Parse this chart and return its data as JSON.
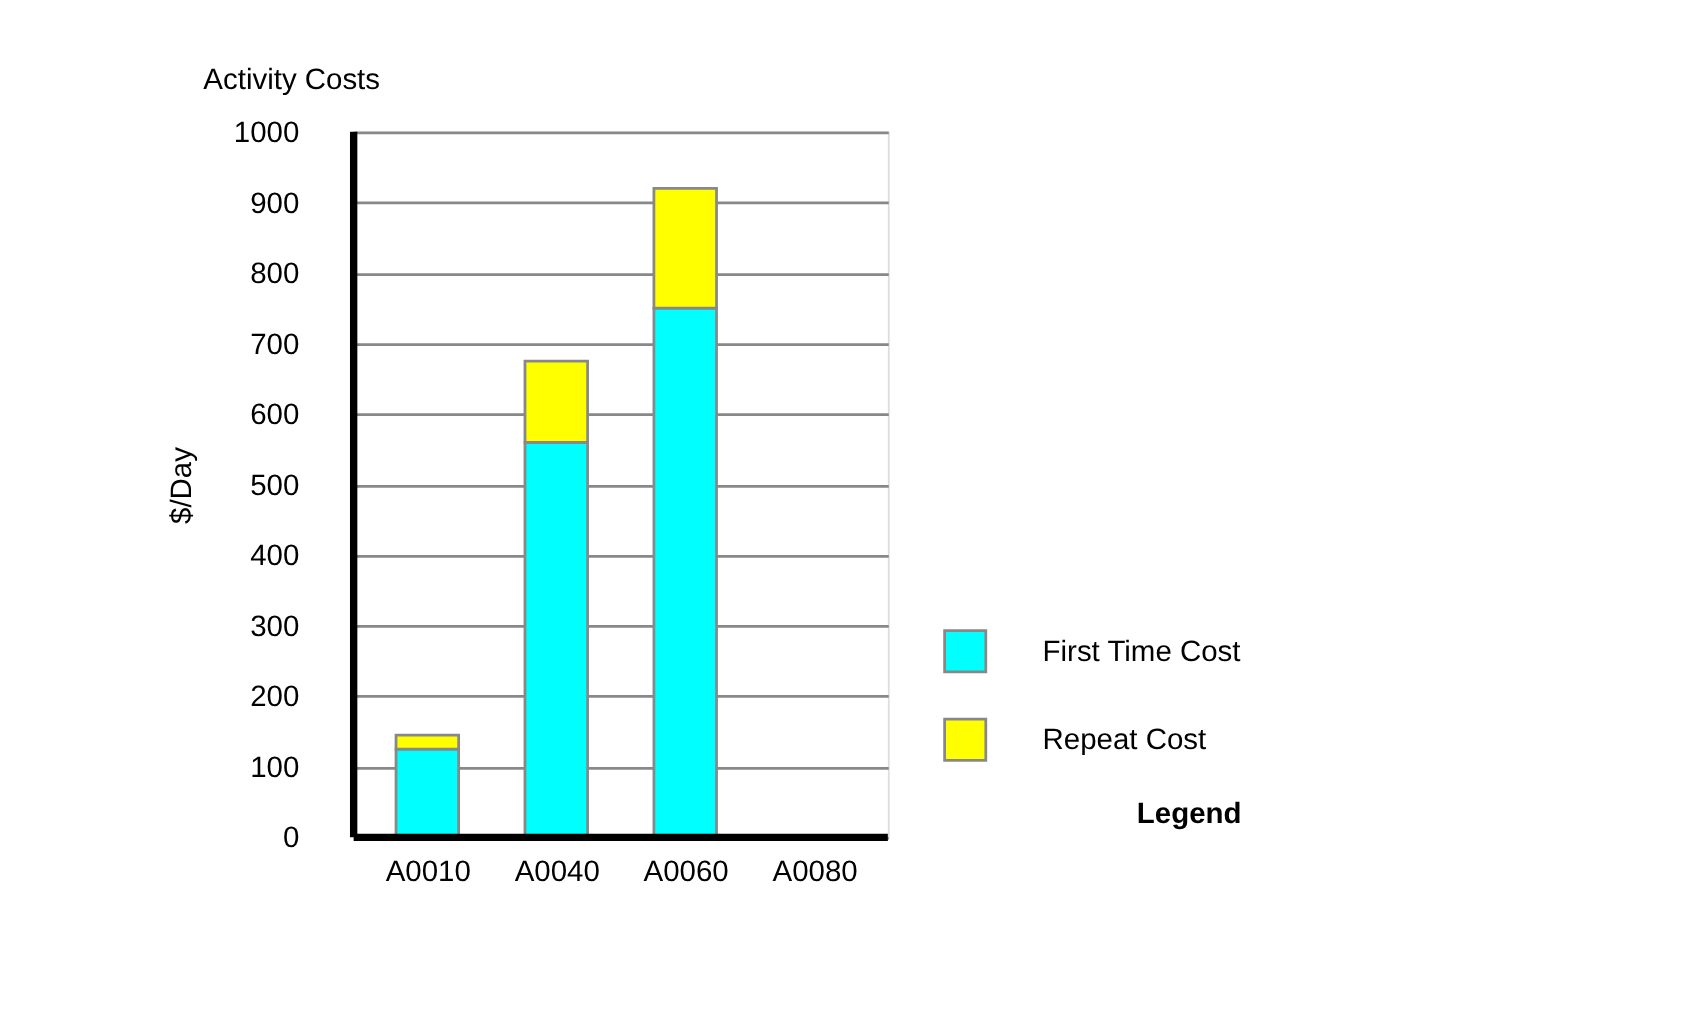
{
  "chart_data": {
    "type": "bar",
    "title": "Activity Costs",
    "ylabel": "$/Day",
    "legend_title": "Legend",
    "categories": [
      "A0010",
      "A0040",
      "A0060",
      "A0080"
    ],
    "series": [
      {
        "name": "First Time Cost",
        "color": "#00ffff",
        "values": [
          125,
          560,
          750,
          null
        ]
      },
      {
        "name": "Repeat Cost",
        "color": "#ffff00",
        "values": [
          20,
          115,
          170,
          null
        ]
      }
    ],
    "stacked": true,
    "ylim": [
      0,
      1000
    ],
    "yticks": [
      0,
      100,
      200,
      300,
      400,
      500,
      600,
      700,
      800,
      900,
      1000
    ],
    "grid": "y",
    "legend": "right"
  }
}
